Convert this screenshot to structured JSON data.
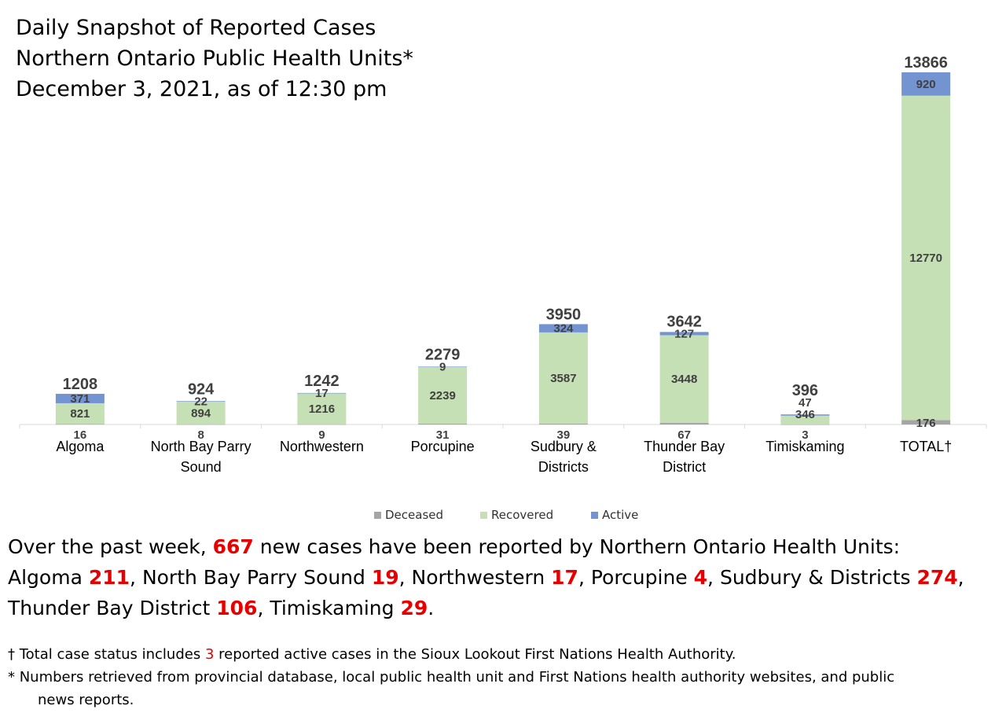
{
  "title": {
    "line1": "Daily Snapshot of Reported Cases",
    "line2": "Northern Ontario Public Health Units*",
    "line3": "December 3, 2021, as of 12:30 pm"
  },
  "colors": {
    "deceased": "#a5a5a5",
    "recovered": "#c5e0b4",
    "active": "#7493d1",
    "highlight": "#e60000"
  },
  "chart_data": {
    "type": "bar",
    "stacked": true,
    "categories": [
      "Algoma",
      "North Bay Parry Sound",
      "Northwestern",
      "Porcupine",
      "Sudbury & Districts",
      "Thunder Bay District",
      "Timiskaming",
      "TOTAL†"
    ],
    "category_lines": [
      [
        "Algoma"
      ],
      [
        "North Bay Parry",
        "Sound"
      ],
      [
        "Northwestern"
      ],
      [
        "Porcupine"
      ],
      [
        "Sudbury &",
        "Districts"
      ],
      [
        "Thunder Bay",
        "District"
      ],
      [
        "Timiskaming"
      ],
      [
        "TOTAL†"
      ]
    ],
    "series": [
      {
        "name": "Deceased",
        "values": [
          16,
          8,
          9,
          31,
          39,
          67,
          3,
          176
        ]
      },
      {
        "name": "Recovered",
        "values": [
          821,
          894,
          1216,
          2239,
          3587,
          3448,
          346,
          12770
        ]
      },
      {
        "name": "Active",
        "values": [
          371,
          22,
          17,
          9,
          324,
          127,
          47,
          920
        ]
      }
    ],
    "totals": [
      1208,
      924,
      1242,
      2279,
      3950,
      3642,
      396,
      13866
    ],
    "ylim": [
      0,
      13866
    ],
    "grid": false,
    "legend_position": "bottom"
  },
  "summary": {
    "intro": "Over the past week, ",
    "total_new": "667",
    "after_total": " new cases have been reported by Northern Ontario Health Units:",
    "units": [
      {
        "name": "Algoma",
        "value": "211",
        "sep": ", "
      },
      {
        "name": "North Bay Parry Sound",
        "value": "19",
        "sep": ", "
      },
      {
        "name": "Northwestern",
        "value": "17",
        "sep": ", "
      },
      {
        "name": "Porcupine",
        "value": "4",
        "sep": ", "
      },
      {
        "name": "Sudbury & Districts",
        "value": "274",
        "sep": ","
      },
      {
        "name": "Thunder Bay District",
        "value": "106",
        "sep": ", "
      },
      {
        "name": "Timiskaming",
        "value": "29",
        "sep": "."
      }
    ]
  },
  "footnotes": {
    "dagger_prefix": "† Total case status includes ",
    "dagger_value": "3",
    "dagger_suffix": " reported active cases in the Sioux Lookout First Nations Health Authority.",
    "star_line1": "* Numbers retrieved from provincial database, local public health unit and First Nations health authority websites, and public",
    "star_line2": "news reports."
  }
}
